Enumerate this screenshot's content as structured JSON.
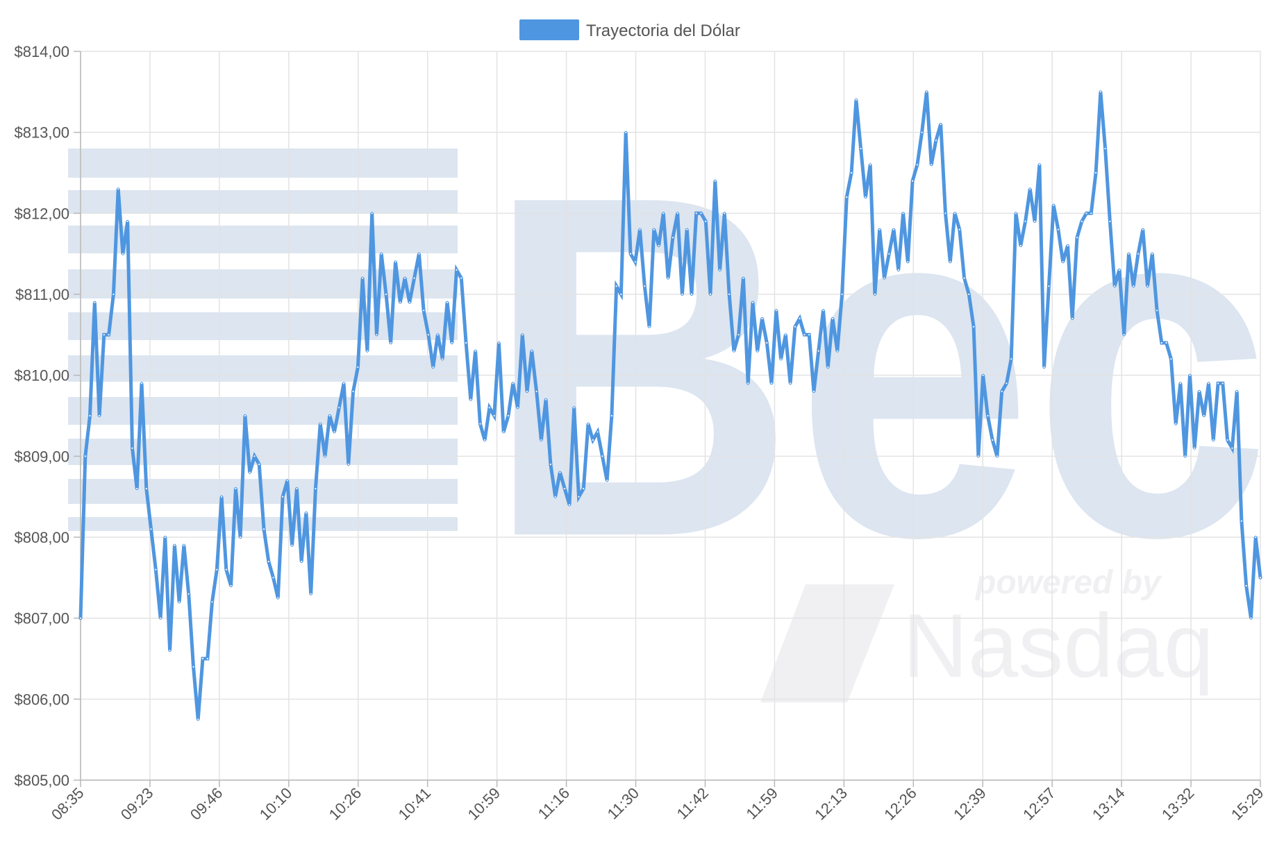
{
  "colors": {
    "line": "#4f96e0",
    "grid": "#e3e3e3",
    "text": "#555555",
    "watermark": "#dce5f0"
  },
  "watermark": {
    "brand_text": "Bec",
    "powered_by": "powered by",
    "partner": "Nasdaq",
    "partner_icon": "nasdaq-logo-icon"
  },
  "chart_data": {
    "type": "line",
    "title": "",
    "xlabel": "",
    "ylabel": "",
    "legend": {
      "position": "top-center",
      "label": "Trayectoria del Dólar"
    },
    "ylim": [
      805,
      814
    ],
    "y_ticks": [
      "$805,00",
      "$806,00",
      "$807,00",
      "$808,00",
      "$809,00",
      "$810,00",
      "$811,00",
      "$812,00",
      "$813,00",
      "$814,00"
    ],
    "x_ticks": [
      "08:35",
      "09:23",
      "09:46",
      "10:10",
      "10:26",
      "10:41",
      "10:59",
      "11:16",
      "11:30",
      "11:42",
      "11:59",
      "12:13",
      "12:26",
      "12:39",
      "12:57",
      "13:14",
      "13:32",
      "15:29"
    ],
    "grid": true,
    "series": [
      {
        "name": "Trayectoria del Dólar",
        "values": [
          807.0,
          809.0,
          809.5,
          810.9,
          809.5,
          810.5,
          810.5,
          811.0,
          812.3,
          811.5,
          811.9,
          809.1,
          808.6,
          809.9,
          808.6,
          808.1,
          807.6,
          807.0,
          808.0,
          806.6,
          807.9,
          807.2,
          807.9,
          807.3,
          806.4,
          805.75,
          806.5,
          806.5,
          807.2,
          807.6,
          808.5,
          807.6,
          807.4,
          808.6,
          808.0,
          809.5,
          808.8,
          809.0,
          808.9,
          808.1,
          807.7,
          807.5,
          807.25,
          808.5,
          808.7,
          807.9,
          808.6,
          807.7,
          808.3,
          807.3,
          808.6,
          809.4,
          809.0,
          809.5,
          809.3,
          809.6,
          809.9,
          808.9,
          809.8,
          810.1,
          811.2,
          810.3,
          812.0,
          810.5,
          811.5,
          811.0,
          810.4,
          811.4,
          810.9,
          811.2,
          810.9,
          811.2,
          811.5,
          810.8,
          810.5,
          810.1,
          810.5,
          810.2,
          810.9,
          810.4,
          811.3,
          811.2,
          810.4,
          809.7,
          810.3,
          809.4,
          809.2,
          809.6,
          809.5,
          810.4,
          809.3,
          809.5,
          809.9,
          809.6,
          810.5,
          809.8,
          810.3,
          809.8,
          809.2,
          809.7,
          808.9,
          808.5,
          808.8,
          808.6,
          808.4,
          809.6,
          808.5,
          808.6,
          809.4,
          809.2,
          809.3,
          809.0,
          808.7,
          809.5,
          811.1,
          811.0,
          813.0,
          811.5,
          811.4,
          811.8,
          811.1,
          810.6,
          811.8,
          811.6,
          812.0,
          811.2,
          811.7,
          812.0,
          811.0,
          811.8,
          811.0,
          812.0,
          812.0,
          811.9,
          811.0,
          812.4,
          811.3,
          812.0,
          811.0,
          810.3,
          810.5,
          811.2,
          809.9,
          810.9,
          810.3,
          810.7,
          810.4,
          809.9,
          810.8,
          810.2,
          810.5,
          809.9,
          810.6,
          810.7,
          810.5,
          810.5,
          809.8,
          810.3,
          810.8,
          810.1,
          810.7,
          810.3,
          811.0,
          812.2,
          812.5,
          813.4,
          812.8,
          812.2,
          812.6,
          811.0,
          811.8,
          811.2,
          811.5,
          811.8,
          811.3,
          812.0,
          811.4,
          812.4,
          812.6,
          813.0,
          813.5,
          812.6,
          812.9,
          813.1,
          812.0,
          811.4,
          812.0,
          811.8,
          811.2,
          811.0,
          810.6,
          809.0,
          810.0,
          809.5,
          809.2,
          809.0,
          809.8,
          809.9,
          810.2,
          812.0,
          811.6,
          811.9,
          812.3,
          811.9,
          812.6,
          810.1,
          811.1,
          812.1,
          811.8,
          811.4,
          811.6,
          810.7,
          811.7,
          811.9,
          812.0,
          812.0,
          812.5,
          813.5,
          812.8,
          811.9,
          811.1,
          811.3,
          810.5,
          811.5,
          811.1,
          811.5,
          811.8,
          811.1,
          811.5,
          810.8,
          810.4,
          810.4,
          810.2,
          809.4,
          809.9,
          809.0,
          810.0,
          809.1,
          809.8,
          809.5,
          809.9,
          809.2,
          809.9,
          809.9,
          809.2,
          809.1,
          809.8,
          808.2,
          807.4,
          807.0,
          808.0,
          807.5
        ]
      }
    ]
  }
}
